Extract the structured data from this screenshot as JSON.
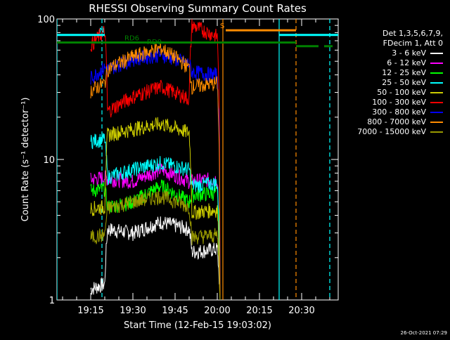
{
  "chart_data": {
    "type": "line",
    "title": "RHESSI Observing Summary Count Rates",
    "xlabel": "Start Time (12-Feb-15 19:03:02)",
    "ylabel": "Count Rate (s⁻¹ detector⁻¹)",
    "xlim": [
      "19:03",
      "20:43"
    ],
    "ylim": [
      1,
      100
    ],
    "yscale": "log",
    "x_tick_labels": [
      "19:15",
      "19:30",
      "19:45",
      "20:00",
      "20:15",
      "20:30"
    ],
    "y_tick_labels": [
      "1",
      "10",
      "100"
    ],
    "legend_header": [
      "Det 1,3,5,6,7,9,",
      "FDecim 1, Att 0"
    ],
    "legend_placement": "right",
    "series": [
      {
        "name": "3 - 6 keV",
        "color": "#ffffff",
        "x": [
          "19:15",
          "19:20",
          "19:21",
          "19:30",
          "19:40",
          "19:50",
          "19:51",
          "20:00",
          "20:01"
        ],
        "values": [
          1.2,
          1.3,
          3.2,
          3.0,
          3.6,
          3.2,
          2.2,
          2.3,
          1.0
        ]
      },
      {
        "name": "6 - 12 keV",
        "color": "#ff00ff",
        "x": [
          "19:15",
          "19:20",
          "19:21",
          "19:30",
          "19:40",
          "19:50",
          "19:51",
          "20:00",
          "20:01"
        ],
        "values": [
          7.2,
          7.5,
          7.3,
          7.0,
          8.5,
          7.0,
          7.0,
          7.3,
          1.0
        ]
      },
      {
        "name": "12 - 25 keV",
        "color": "#00ff00",
        "x": [
          "19:15",
          "19:20",
          "19:21",
          "19:30",
          "19:40",
          "19:50",
          "19:51",
          "20:00",
          "20:01"
        ],
        "values": [
          6.0,
          6.2,
          4.6,
          5.0,
          6.5,
          5.0,
          5.6,
          5.8,
          1.0
        ]
      },
      {
        "name": "25 - 50 keV",
        "color": "#00ffff",
        "x": [
          "19:15",
          "19:20",
          "19:21",
          "19:30",
          "19:40",
          "19:50",
          "19:51",
          "20:00",
          "20:01"
        ],
        "values": [
          13.5,
          14.0,
          7.5,
          8.5,
          9.5,
          8.5,
          6.5,
          6.8,
          1.0
        ]
      },
      {
        "name": "50 - 100 keV",
        "color": "#cccc00",
        "x": [
          "19:15",
          "19:20",
          "19:21",
          "19:30",
          "19:40",
          "19:50",
          "19:51",
          "20:00",
          "20:01"
        ],
        "values": [
          4.5,
          4.6,
          15.0,
          16.5,
          18.0,
          15.5,
          4.2,
          4.4,
          1.0
        ]
      },
      {
        "name": "100 - 300 keV",
        "color": "#ff0000",
        "x": [
          "19:15",
          "19:20",
          "19:21",
          "19:30",
          "19:40",
          "19:50",
          "19:51",
          "20:00",
          "20:01"
        ],
        "values": [
          65.0,
          82.0,
          22.0,
          28.0,
          33.0,
          27.0,
          90.0,
          75.0,
          1.0
        ]
      },
      {
        "name": "300 - 800 keV",
        "color": "#0000ff",
        "x": [
          "19:15",
          "19:20",
          "19:21",
          "19:30",
          "19:40",
          "19:50",
          "19:51",
          "20:00",
          "20:01"
        ],
        "values": [
          38.0,
          45.0,
          44.0,
          52.0,
          56.0,
          48.0,
          42.0,
          40.0,
          1.0
        ]
      },
      {
        "name": "800 - 7000 keV",
        "color": "#ff8c00",
        "x": [
          "19:15",
          "19:20",
          "19:21",
          "19:30",
          "19:40",
          "19:50",
          "19:51",
          "20:00",
          "20:01"
        ],
        "values": [
          31.0,
          35.0,
          44.0,
          54.0,
          62.0,
          45.0,
          33.0,
          35.0,
          1.0
        ]
      },
      {
        "name": "7000 - 15000 keV",
        "color": "#999900",
        "x": [
          "19:15",
          "19:20",
          "19:21",
          "19:30",
          "19:40",
          "19:50",
          "19:51",
          "20:00",
          "20:01"
        ],
        "values": [
          2.8,
          2.9,
          4.5,
          5.0,
          5.5,
          4.6,
          2.8,
          2.9,
          1.0
        ]
      }
    ],
    "flags": [
      {
        "label": "N",
        "color": "#00ffff",
        "level": 77,
        "segments": [
          [
            "19:03",
            "19:20"
          ],
          [
            "20:22",
            "20:43"
          ]
        ],
        "label_at": "19:18"
      },
      {
        "label": "S",
        "color": "#ff8c00",
        "level": 83,
        "segments": [
          [
            "20:03",
            "20:28"
          ]
        ],
        "label_at": "20:01"
      },
      {
        "label": "RD6",
        "color": "#008000",
        "level": 68,
        "segments": [
          [
            "19:03",
            "20:28"
          ]
        ],
        "label_at": "19:27"
      },
      {
        "label": "RD0",
        "color": "#008000",
        "level": 64,
        "segments": [
          [
            "20:28",
            "20:36"
          ],
          [
            "20:38",
            "20:41"
          ]
        ],
        "label_at": "19:35"
      }
    ],
    "vlines": [
      {
        "color": "#00ffff",
        "x": "19:03",
        "style": "solid"
      },
      {
        "color": "#00ffff",
        "x": "19:19",
        "style": "dashed"
      },
      {
        "color": "#00ffff",
        "x": "20:22",
        "style": "solid"
      },
      {
        "color": "#00ffff",
        "x": "20:40",
        "style": "dashed"
      },
      {
        "color": "#ff8c00",
        "x": "20:02",
        "style": "solid"
      },
      {
        "color": "#ff8c00",
        "x": "20:28",
        "style": "dashed"
      }
    ]
  },
  "footer": {
    "stamp": "26-Oct-2021 07:29"
  }
}
